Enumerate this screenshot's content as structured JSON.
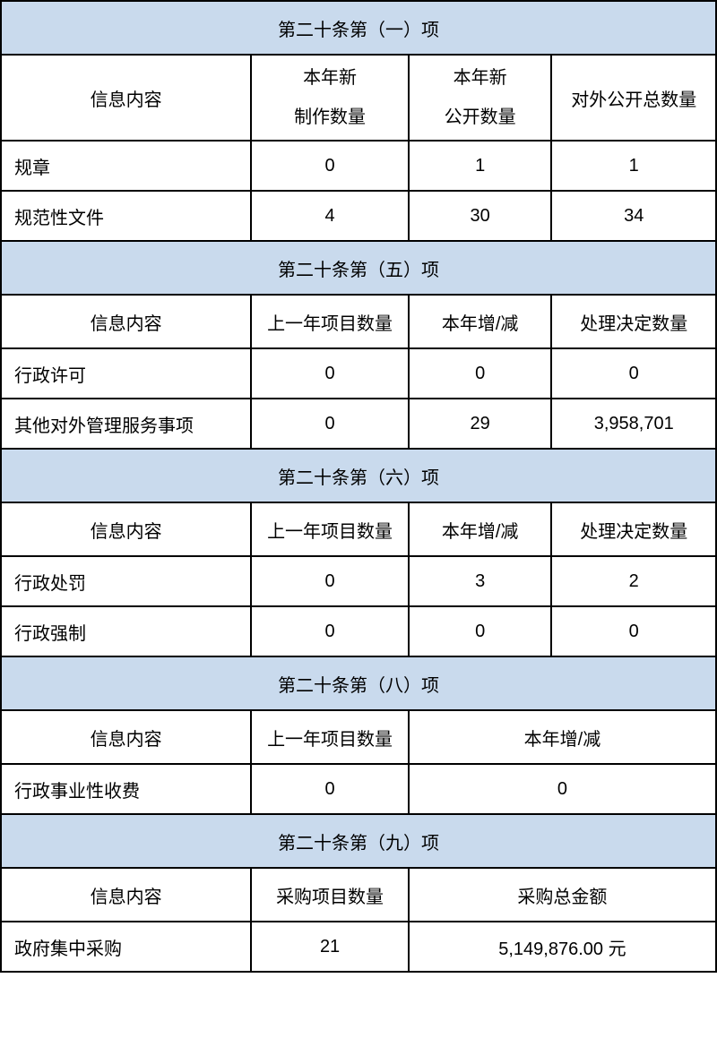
{
  "colors": {
    "header_bg": "#c9daed",
    "border": "#000000",
    "text": "#000000",
    "background": "#ffffff"
  },
  "fonts": {
    "body_size": 20,
    "family": "Microsoft YaHei"
  },
  "col_widths": [
    "35%",
    "22%",
    "20%",
    "23%"
  ],
  "sections": {
    "s1": {
      "title": "第二十条第（一）项",
      "headers": {
        "c1": "信息内容",
        "c2_line1": "本年新",
        "c2_line2": "制作数量",
        "c3_line1": "本年新",
        "c3_line2": "公开数量",
        "c4": "对外公开总数量"
      },
      "rows": [
        {
          "label": "规章",
          "v1": "0",
          "v2": "1",
          "v3": "1"
        },
        {
          "label": "规范性文件",
          "v1": "4",
          "v2": "30",
          "v3": "34"
        }
      ]
    },
    "s5": {
      "title": "第二十条第（五）项",
      "headers": {
        "c1": "信息内容",
        "c2": "上一年项目数量",
        "c3": "本年增/减",
        "c4": "处理决定数量"
      },
      "rows": [
        {
          "label": "行政许可",
          "v1": "0",
          "v2": "0",
          "v3": "0"
        },
        {
          "label": "其他对外管理服务事项",
          "v1": "0",
          "v2": "29",
          "v3": "3,958,701"
        }
      ]
    },
    "s6": {
      "title": "第二十条第（六）项",
      "headers": {
        "c1": "信息内容",
        "c2": "上一年项目数量",
        "c3": "本年增/减",
        "c4": "处理决定数量"
      },
      "rows": [
        {
          "label": "行政处罚",
          "v1": "0",
          "v2": "3",
          "v3": "2"
        },
        {
          "label": "行政强制",
          "v1": "0",
          "v2": "0",
          "v3": "0"
        }
      ]
    },
    "s8": {
      "title": "第二十条第（八）项",
      "headers": {
        "c1": "信息内容",
        "c2": "上一年项目数量",
        "c3": "本年增/减"
      },
      "rows": [
        {
          "label": "行政事业性收费",
          "v1": "0",
          "v2": "0"
        }
      ]
    },
    "s9": {
      "title": "第二十条第（九）项",
      "headers": {
        "c1": "信息内容",
        "c2": "采购项目数量",
        "c3": "采购总金额"
      },
      "rows": [
        {
          "label": "政府集中采购",
          "v1": "21",
          "v2": "5,149,876.00 元"
        }
      ]
    }
  }
}
